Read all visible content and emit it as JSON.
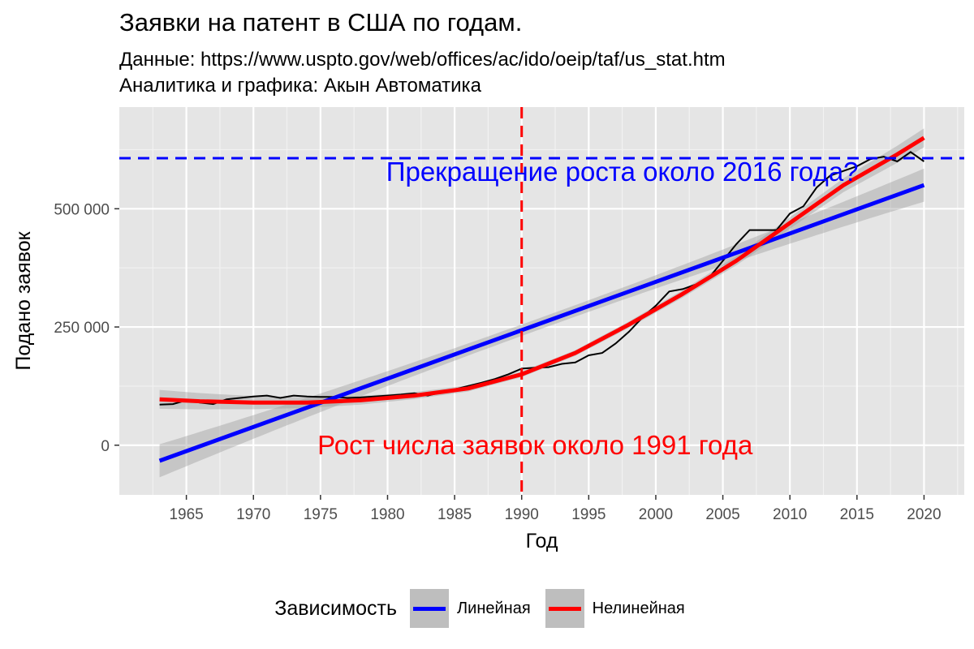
{
  "title": "Заявки на патент в США по годам.",
  "subtitle_line1": "Данные: https://www.uspto.gov/web/offices/ac/ido/oeip/taf/us_stat.htm",
  "subtitle_line2": "Аналитика и графика: Акын Автоматика",
  "colors": {
    "linear": "#0000ff",
    "nonlinear": "#ff0000",
    "panel": "#e5e5e5",
    "ribbon": "#bebebe",
    "data_line": "#000000"
  },
  "chart_data": {
    "type": "line",
    "title": "Заявки на патент в США по годам.",
    "xlabel": "Год",
    "ylabel": "Подано заявок",
    "xlim": [
      1960,
      2023
    ],
    "ylim": [
      -105000,
      715000
    ],
    "x_ticks": [
      1965,
      1970,
      1975,
      1980,
      1985,
      1990,
      1995,
      2000,
      2005,
      2010,
      2015,
      2020
    ],
    "y_ticks": [
      0,
      250000,
      500000
    ],
    "y_tick_labels": [
      "0",
      "250 000",
      "500 000"
    ],
    "series": [
      {
        "name": "Заявки",
        "x": [
          1963,
          1964,
          1965,
          1966,
          1967,
          1968,
          1969,
          1970,
          1971,
          1972,
          1973,
          1974,
          1975,
          1976,
          1977,
          1978,
          1979,
          1980,
          1981,
          1982,
          1983,
          1984,
          1985,
          1986,
          1987,
          1988,
          1989,
          1990,
          1991,
          1992,
          1993,
          1994,
          1995,
          1996,
          1997,
          1998,
          1999,
          2000,
          2001,
          2002,
          2003,
          2004,
          2005,
          2006,
          2007,
          2008,
          2009,
          2010,
          2011,
          2012,
          2013,
          2014,
          2015,
          2016,
          2017,
          2018,
          2019,
          2020
        ],
        "values": [
          86000,
          87000,
          95000,
          90000,
          87000,
          97000,
          100000,
          103000,
          105000,
          100000,
          105000,
          103000,
          102000,
          102000,
          100000,
          101000,
          103000,
          105000,
          107000,
          110000,
          105000,
          112000,
          118000,
          125000,
          132000,
          140000,
          150000,
          162000,
          164000,
          165000,
          172000,
          175000,
          190000,
          195000,
          215000,
          240000,
          270000,
          295000,
          325000,
          330000,
          340000,
          355000,
          390000,
          425000,
          455000,
          455000,
          455000,
          490000,
          505000,
          545000,
          570000,
          580000,
          590000,
          605000,
          610000,
          600000,
          620000,
          600000
        ]
      }
    ],
    "fits": [
      {
        "name": "Линейная",
        "type": "linear",
        "intercept_1963": -33000,
        "value_2020": 550000,
        "ci_halfwidth_ends": 35000,
        "ci_halfwidth_mid": 12000
      },
      {
        "name": "Нелинейная",
        "type": "quadratic",
        "x": [
          1963,
          1966,
          1970,
          1974,
          1978,
          1982,
          1986,
          1990,
          1994,
          1998,
          2002,
          2006,
          2010,
          2014,
          2018,
          2020
        ],
        "values": [
          97000,
          93000,
          90000,
          90000,
          95000,
          105000,
          120000,
          150000,
          195000,
          255000,
          320000,
          390000,
          470000,
          550000,
          615000,
          650000
        ],
        "ci_halfwidth_ends": 20000,
        "ci_halfwidth_mid": 6000
      }
    ],
    "reference_lines": [
      {
        "type": "vline",
        "x": 1990,
        "color": "#ff0000",
        "style": "dashed"
      },
      {
        "type": "hline",
        "y": 607000,
        "color": "#0000ff",
        "style": "dashed"
      }
    ],
    "annotations": [
      {
        "text": "Прекращение роста около 2016 года?",
        "x": 1997.5,
        "y": 578000,
        "color": "#0000ff"
      },
      {
        "text": "Рост числа заявок около 1991 года",
        "x": 1991,
        "y": 0,
        "color": "#ff0000"
      }
    ],
    "legend": {
      "title": "Зависимость",
      "position": "bottom",
      "entries": [
        {
          "label": "Линейная",
          "color": "#0000ff"
        },
        {
          "label": "Нелинейная",
          "color": "#ff0000"
        }
      ]
    }
  }
}
